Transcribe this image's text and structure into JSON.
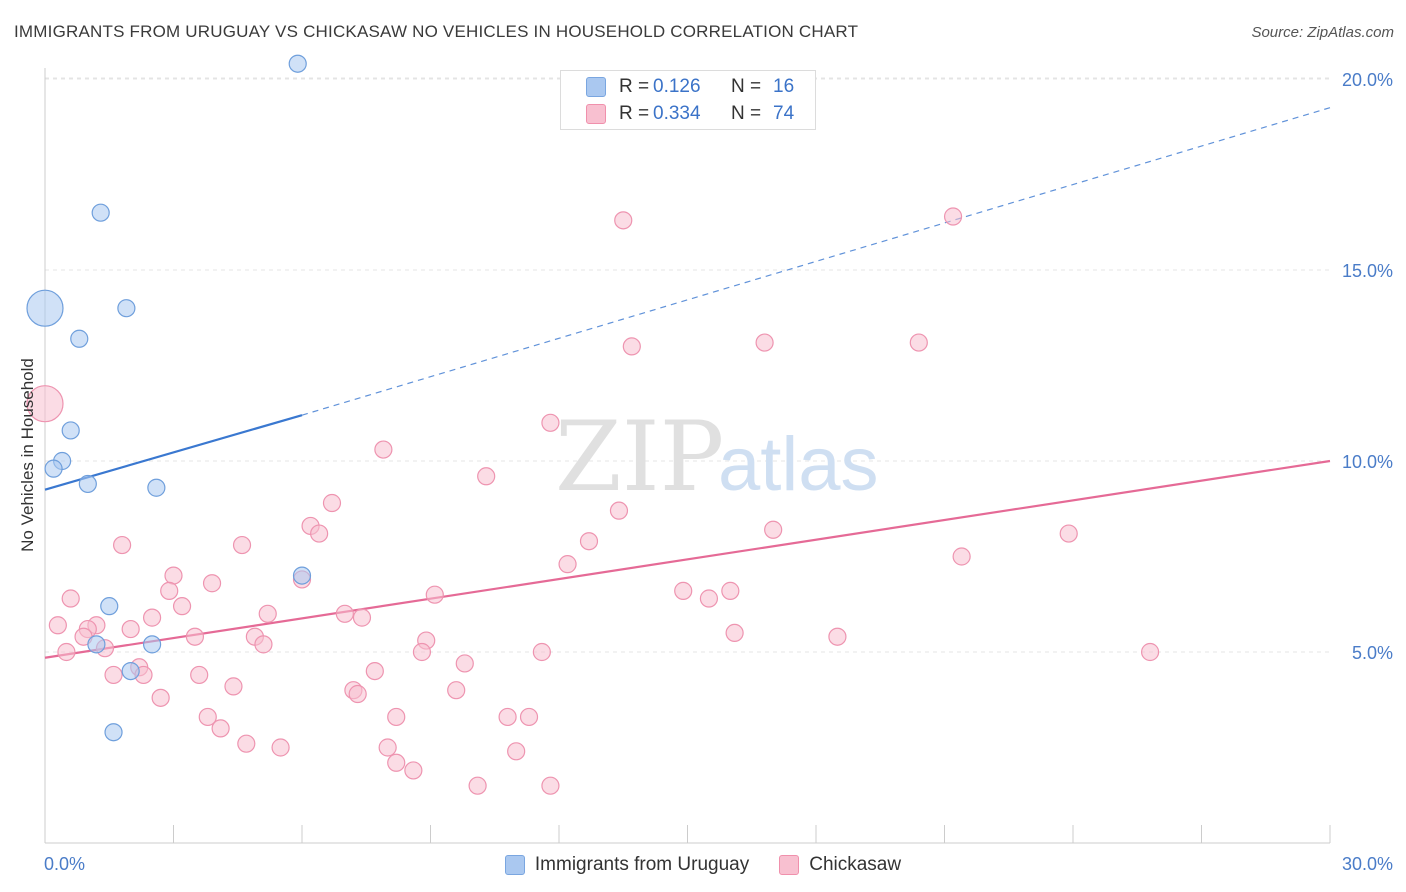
{
  "header": {
    "title": "IMMIGRANTS FROM URUGUAY VS CHICKASAW NO VEHICLES IN HOUSEHOLD CORRELATION CHART",
    "source": "Source: ZipAtlas.com"
  },
  "stats": [
    {
      "r_label": "R =",
      "r_value": "0.126",
      "n_label": "N =",
      "n_value": "16",
      "color": "#aac8f0",
      "border": "#7aa6e0"
    },
    {
      "r_label": "R =",
      "r_value": "0.334",
      "n_label": "N =",
      "n_value": "74",
      "color": "#f8c0d0",
      "border": "#f090ac"
    }
  ],
  "legend": {
    "items": [
      {
        "label": "Immigrants from Uruguay",
        "color": "#aac8f0",
        "border": "#7aa6e0"
      },
      {
        "label": "Chickasaw",
        "color": "#f8c0d0",
        "border": "#f090ac"
      }
    ]
  },
  "watermark": {
    "zip": "ZIP",
    "atlas": "atlas"
  },
  "chart_data": {
    "type": "scatter",
    "ylabel": "No Vehicles in Household",
    "xlim": [
      0,
      30
    ],
    "ylim": [
      0,
      20
    ],
    "x_tick_labels": [
      {
        "value": 0,
        "label": "0.0%"
      },
      {
        "value": 30,
        "label": "30.0%"
      }
    ],
    "y_tick_labels": [
      {
        "value": 5,
        "label": "5.0%"
      },
      {
        "value": 10,
        "label": "10.0%"
      },
      {
        "value": 15,
        "label": "15.0%"
      },
      {
        "value": 20,
        "label": "20.0%"
      }
    ],
    "grid": true,
    "colors": {
      "uruguay_fill": "#aac8f0",
      "uruguay_stroke": "#6f9fdc",
      "uruguay_line": "#3a78d0",
      "chickasaw_fill": "#f8c0d0",
      "chickasaw_stroke": "#ee94b0",
      "chickasaw_line": "#e56a96",
      "tick_label": "#4a7cc8"
    },
    "series": [
      {
        "name": "Immigrants from Uruguay",
        "points": [
          {
            "x": 0.0,
            "y": 14.0,
            "size": "large"
          },
          {
            "x": 5.9,
            "y": 20.4
          },
          {
            "x": 1.3,
            "y": 16.5
          },
          {
            "x": 1.9,
            "y": 14.0
          },
          {
            "x": 0.8,
            "y": 13.2
          },
          {
            "x": 0.6,
            "y": 10.8
          },
          {
            "x": 0.4,
            "y": 10.0
          },
          {
            "x": 0.2,
            "y": 9.8
          },
          {
            "x": 1.0,
            "y": 9.4
          },
          {
            "x": 2.6,
            "y": 9.3
          },
          {
            "x": 6.0,
            "y": 7.0
          },
          {
            "x": 1.5,
            "y": 6.2
          },
          {
            "x": 1.2,
            "y": 5.2
          },
          {
            "x": 2.5,
            "y": 5.2
          },
          {
            "x": 2.0,
            "y": 4.5
          },
          {
            "x": 1.6,
            "y": 2.9
          }
        ],
        "trend": {
          "x0": 0.0,
          "y0": 9.25,
          "x1": 6.0,
          "y1": 11.2,
          "x_end": 30.0,
          "y_end": 19.25
        }
      },
      {
        "name": "Chickasaw",
        "points": [
          {
            "x": 0.0,
            "y": 11.5,
            "size": "large"
          },
          {
            "x": 13.5,
            "y": 16.3
          },
          {
            "x": 21.2,
            "y": 16.4
          },
          {
            "x": 13.7,
            "y": 13.0
          },
          {
            "x": 16.8,
            "y": 13.1
          },
          {
            "x": 20.4,
            "y": 13.1
          },
          {
            "x": 11.8,
            "y": 11.0
          },
          {
            "x": 7.9,
            "y": 10.3
          },
          {
            "x": 10.3,
            "y": 9.6
          },
          {
            "x": 6.7,
            "y": 8.9
          },
          {
            "x": 13.4,
            "y": 8.7
          },
          {
            "x": 6.2,
            "y": 8.3
          },
          {
            "x": 6.4,
            "y": 8.1
          },
          {
            "x": 17.0,
            "y": 8.2
          },
          {
            "x": 23.9,
            "y": 8.1
          },
          {
            "x": 12.7,
            "y": 7.9
          },
          {
            "x": 1.8,
            "y": 7.8
          },
          {
            "x": 4.6,
            "y": 7.8
          },
          {
            "x": 21.4,
            "y": 7.5
          },
          {
            "x": 12.2,
            "y": 7.3
          },
          {
            "x": 3.0,
            "y": 7.0
          },
          {
            "x": 6.0,
            "y": 6.9
          },
          {
            "x": 3.9,
            "y": 6.8
          },
          {
            "x": 2.9,
            "y": 6.6
          },
          {
            "x": 14.9,
            "y": 6.6
          },
          {
            "x": 16.0,
            "y": 6.6
          },
          {
            "x": 9.1,
            "y": 6.5
          },
          {
            "x": 15.5,
            "y": 6.4
          },
          {
            "x": 0.6,
            "y": 6.4
          },
          {
            "x": 3.2,
            "y": 6.2
          },
          {
            "x": 7.0,
            "y": 6.0
          },
          {
            "x": 5.2,
            "y": 6.0
          },
          {
            "x": 2.5,
            "y": 5.9
          },
          {
            "x": 7.4,
            "y": 5.9
          },
          {
            "x": 0.3,
            "y": 5.7
          },
          {
            "x": 1.2,
            "y": 5.7
          },
          {
            "x": 1.0,
            "y": 5.6
          },
          {
            "x": 2.0,
            "y": 5.6
          },
          {
            "x": 0.9,
            "y": 5.4
          },
          {
            "x": 3.5,
            "y": 5.4
          },
          {
            "x": 4.9,
            "y": 5.4
          },
          {
            "x": 16.1,
            "y": 5.5
          },
          {
            "x": 18.5,
            "y": 5.4
          },
          {
            "x": 5.1,
            "y": 5.2
          },
          {
            "x": 8.9,
            "y": 5.3
          },
          {
            "x": 0.5,
            "y": 5.0
          },
          {
            "x": 1.4,
            "y": 5.1
          },
          {
            "x": 8.8,
            "y": 5.0
          },
          {
            "x": 11.6,
            "y": 5.0
          },
          {
            "x": 25.8,
            "y": 5.0
          },
          {
            "x": 9.8,
            "y": 4.7
          },
          {
            "x": 2.2,
            "y": 4.6
          },
          {
            "x": 7.7,
            "y": 4.5
          },
          {
            "x": 1.6,
            "y": 4.4
          },
          {
            "x": 2.3,
            "y": 4.4
          },
          {
            "x": 3.6,
            "y": 4.4
          },
          {
            "x": 4.4,
            "y": 4.1
          },
          {
            "x": 7.2,
            "y": 4.0
          },
          {
            "x": 9.6,
            "y": 4.0
          },
          {
            "x": 2.7,
            "y": 3.8
          },
          {
            "x": 7.3,
            "y": 3.9
          },
          {
            "x": 3.8,
            "y": 3.3
          },
          {
            "x": 8.2,
            "y": 3.3
          },
          {
            "x": 10.8,
            "y": 3.3
          },
          {
            "x": 11.3,
            "y": 3.3
          },
          {
            "x": 4.1,
            "y": 3.0
          },
          {
            "x": 4.7,
            "y": 2.6
          },
          {
            "x": 5.5,
            "y": 2.5
          },
          {
            "x": 8.0,
            "y": 2.5
          },
          {
            "x": 11.0,
            "y": 2.4
          },
          {
            "x": 8.2,
            "y": 2.1
          },
          {
            "x": 8.6,
            "y": 1.9
          },
          {
            "x": 10.1,
            "y": 1.5
          },
          {
            "x": 11.8,
            "y": 1.5
          }
        ],
        "trend": {
          "x0": 0.0,
          "y0": 4.85,
          "x1": 30.0,
          "y1": 10.0
        }
      }
    ]
  }
}
